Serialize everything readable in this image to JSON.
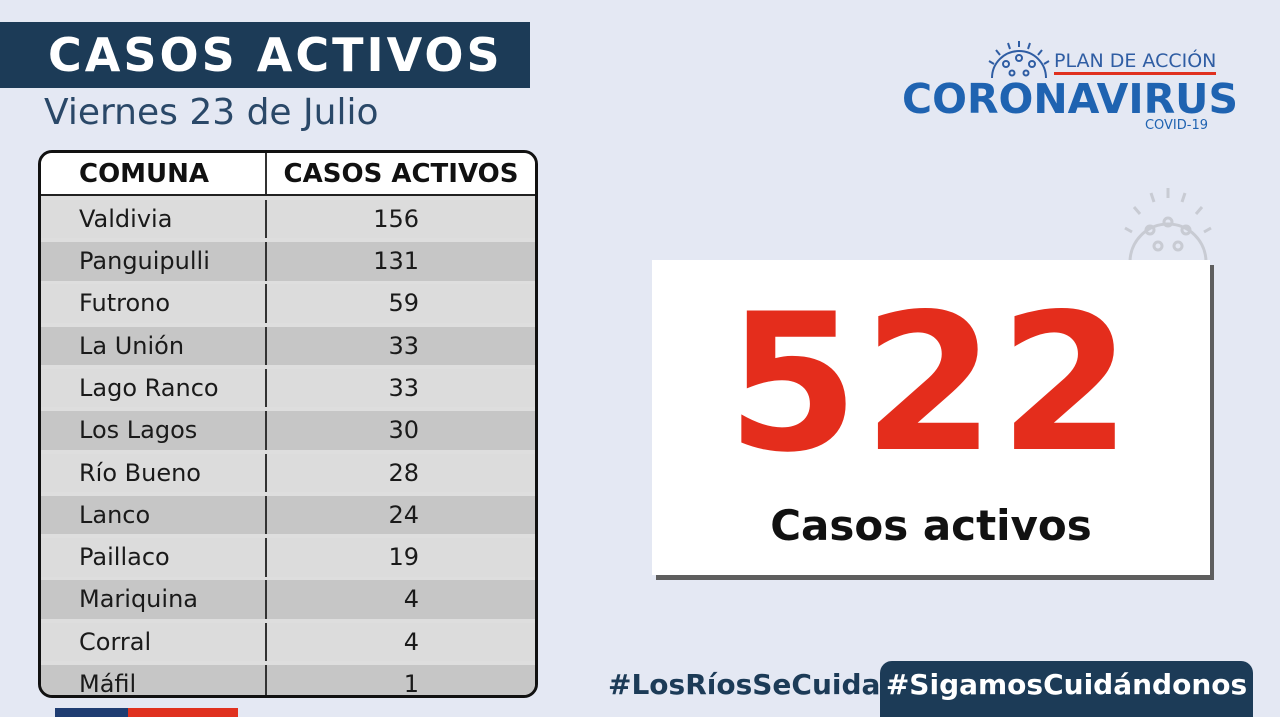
{
  "header": {
    "title": "CASOS ACTIVOS",
    "date": "Viernes 23 de Julio"
  },
  "logo": {
    "plan": "PLAN DE ACCIÓN",
    "name": "CORONAVIRUS",
    "sub": "COVID-19"
  },
  "table": {
    "columns": [
      "COMUNA",
      "CASOS ACTIVOS"
    ],
    "rows": [
      {
        "comuna": "Valdivia",
        "casos": "156"
      },
      {
        "comuna": "Panguipulli",
        "casos": "131"
      },
      {
        "comuna": "Futrono",
        "casos": "59"
      },
      {
        "comuna": "La Unión",
        "casos": "33"
      },
      {
        "comuna": "Lago Ranco",
        "casos": "33"
      },
      {
        "comuna": "Los Lagos",
        "casos": "30"
      },
      {
        "comuna": "Río Bueno",
        "casos": "28"
      },
      {
        "comuna": "Lanco",
        "casos": "24"
      },
      {
        "comuna": "Paillaco",
        "casos": "19"
      },
      {
        "comuna": "Mariquina",
        "casos": "4"
      },
      {
        "comuna": "Corral",
        "casos": "4"
      },
      {
        "comuna": "Máfil",
        "casos": "1"
      }
    ]
  },
  "total": {
    "value": "522",
    "label": "Casos activos"
  },
  "hashtags": {
    "primary": "#LosRíosSeCuida",
    "secondary": "#SigamosCuidándonos"
  },
  "colors": {
    "navy": "#1c3b57",
    "accent_red": "#e42d1c",
    "logo_blue": "#1f63b1",
    "background": "#e4e8f3"
  }
}
